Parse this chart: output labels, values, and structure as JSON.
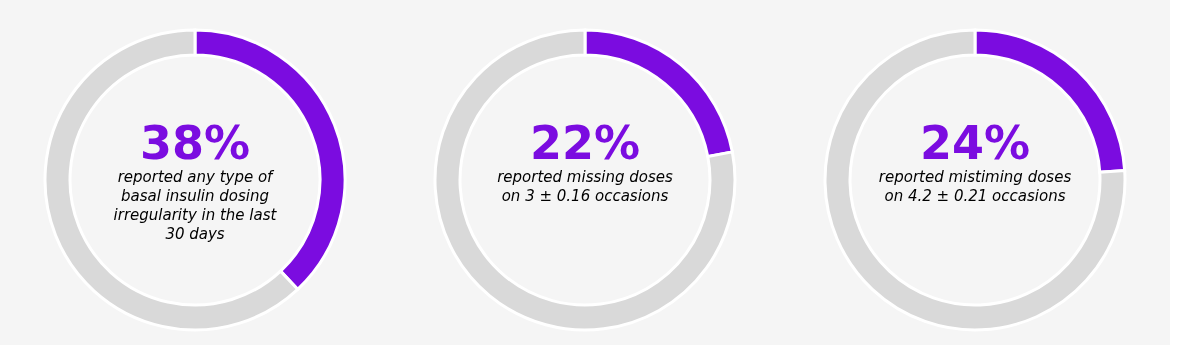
{
  "chart_data": [
    {
      "type": "donut",
      "categories": [
        null,
        null
      ],
      "values": [
        38,
        62
      ],
      "colors": [
        "#7b0ce0",
        "#d9d9d9"
      ],
      "annotations": [
        "38%",
        "reported any type of basal insulin dosing irregularity in the last 30 days"
      ]
    },
    {
      "type": "donut",
      "categories": [
        null,
        null
      ],
      "values": [
        22,
        78
      ],
      "colors": [
        "#7b0ce0",
        "#d9d9d9"
      ],
      "annotations": [
        "22%",
        "reported missing doses on 3 ± 0.16 occasions"
      ]
    },
    {
      "type": "donut",
      "categories": [
        null,
        null
      ],
      "values": [
        24,
        76
      ],
      "colors": [
        "#7b0ce0",
        "#d9d9d9"
      ],
      "annotations": [
        "24%",
        "reported mistiming doses on 4.2 ± 0.21 occasions"
      ]
    }
  ]
}
